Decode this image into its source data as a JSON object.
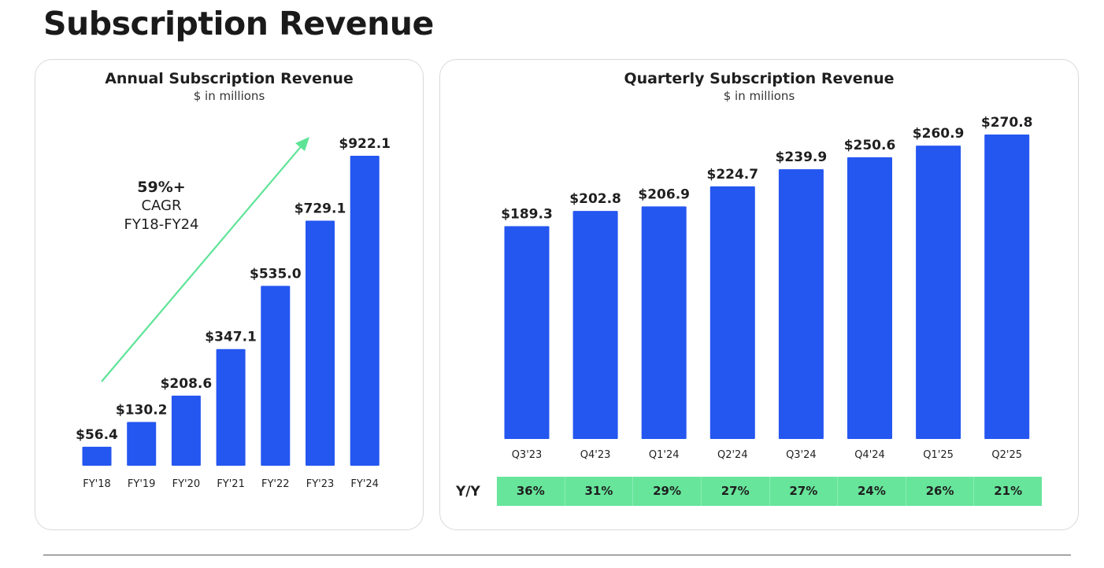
{
  "page": {
    "title": "Subscription Revenue"
  },
  "colors": {
    "bar": "#2456f0",
    "growth": "#67e59b",
    "arrow": "#5fe397"
  },
  "annual": {
    "title": "Annual Subscription Revenue",
    "subtitle": "$ in millions",
    "cagr": {
      "value": "59%+",
      "line1": "CAGR",
      "line2": "FY18-FY24"
    }
  },
  "quarterly": {
    "title": "Quarterly Subscription Revenue",
    "subtitle": "$ in millions",
    "yy_label": "Y/Y",
    "yy_values": [
      "36%",
      "31%",
      "29%",
      "27%",
      "27%",
      "24%",
      "26%",
      "21%"
    ]
  },
  "chart_data": [
    {
      "type": "bar",
      "title": "Annual Subscription Revenue",
      "subtitle": "$ in millions",
      "categories": [
        "FY'18",
        "FY'19",
        "FY'20",
        "FY'21",
        "FY'22",
        "FY'23",
        "FY'24"
      ],
      "values": [
        56.4,
        130.2,
        208.6,
        347.1,
        535.0,
        729.1,
        922.1
      ],
      "labels": [
        "$56.4",
        "$130.2",
        "$208.6",
        "$347.1",
        "$535.0",
        "$729.1",
        "$922.1"
      ],
      "xlabel": "",
      "ylabel": "",
      "grid": false,
      "annotation": "59%+ CAGR FY18-FY24"
    },
    {
      "type": "bar",
      "title": "Quarterly Subscription Revenue",
      "subtitle": "$ in millions",
      "categories": [
        "Q3'23",
        "Q4'23",
        "Q1'24",
        "Q2'24",
        "Q3'24",
        "Q4'24",
        "Q1'25",
        "Q2'25"
      ],
      "values": [
        189.3,
        202.8,
        206.9,
        224.7,
        239.9,
        250.6,
        260.9,
        270.8
      ],
      "labels": [
        "$189.3",
        "$202.8",
        "$206.9",
        "$224.7",
        "$239.9",
        "$250.6",
        "$260.9",
        "$270.8"
      ],
      "xlabel": "",
      "ylabel": "",
      "grid": false,
      "yy_growth": [
        "36%",
        "31%",
        "29%",
        "27%",
        "27%",
        "24%",
        "26%",
        "21%"
      ]
    }
  ]
}
